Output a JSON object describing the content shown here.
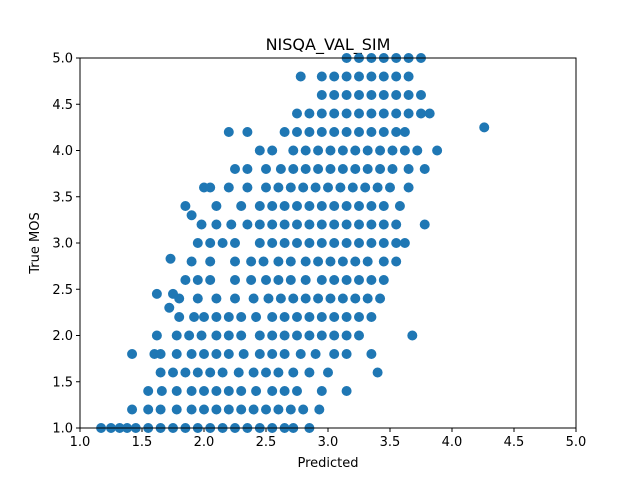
{
  "chart_data": {
    "type": "scatter",
    "title": "NISQA_VAL_SIM",
    "xlabel": "Predicted",
    "ylabel": "True MOS",
    "xlim": [
      1.0,
      5.0
    ],
    "ylim": [
      1.0,
      5.0
    ],
    "xticks": [
      "1.0",
      "1.5",
      "2.0",
      "2.5",
      "3.0",
      "3.5",
      "4.0",
      "4.5",
      "5.0"
    ],
    "yticks": [
      "1.0",
      "1.5",
      "2.0",
      "2.5",
      "3.0",
      "3.5",
      "4.0",
      "4.5",
      "5.0"
    ],
    "grid": false,
    "marker_color": "#1f77b4",
    "series": [
      {
        "points": [
          [
            1.17,
            1.0
          ],
          [
            1.25,
            1.0
          ],
          [
            1.32,
            1.0
          ],
          [
            1.38,
            1.0
          ],
          [
            1.45,
            1.0
          ],
          [
            1.55,
            1.0
          ],
          [
            1.65,
            1.0
          ],
          [
            1.75,
            1.0
          ],
          [
            1.85,
            1.0
          ],
          [
            1.95,
            1.0
          ],
          [
            2.05,
            1.0
          ],
          [
            2.15,
            1.0
          ],
          [
            2.25,
            1.0
          ],
          [
            2.35,
            1.0
          ],
          [
            2.45,
            1.0
          ],
          [
            2.55,
            1.0
          ],
          [
            2.65,
            1.0
          ],
          [
            2.72,
            1.0
          ],
          [
            2.85,
            1.0
          ],
          [
            1.42,
            1.2
          ],
          [
            1.55,
            1.2
          ],
          [
            1.65,
            1.2
          ],
          [
            1.78,
            1.2
          ],
          [
            1.9,
            1.2
          ],
          [
            2.0,
            1.2
          ],
          [
            2.1,
            1.2
          ],
          [
            2.2,
            1.2
          ],
          [
            2.3,
            1.2
          ],
          [
            2.4,
            1.2
          ],
          [
            2.5,
            1.2
          ],
          [
            2.6,
            1.2
          ],
          [
            2.7,
            1.2
          ],
          [
            2.8,
            1.2
          ],
          [
            2.93,
            1.2
          ],
          [
            1.55,
            1.4
          ],
          [
            1.66,
            1.4
          ],
          [
            1.78,
            1.4
          ],
          [
            1.9,
            1.4
          ],
          [
            2.0,
            1.4
          ],
          [
            2.1,
            1.4
          ],
          [
            2.2,
            1.4
          ],
          [
            2.3,
            1.4
          ],
          [
            2.42,
            1.4
          ],
          [
            2.55,
            1.4
          ],
          [
            2.65,
            1.4
          ],
          [
            2.75,
            1.4
          ],
          [
            2.95,
            1.4
          ],
          [
            3.15,
            1.4
          ],
          [
            1.65,
            1.6
          ],
          [
            1.75,
            1.6
          ],
          [
            1.85,
            1.6
          ],
          [
            1.95,
            1.6
          ],
          [
            2.05,
            1.6
          ],
          [
            2.15,
            1.6
          ],
          [
            2.28,
            1.6
          ],
          [
            2.4,
            1.6
          ],
          [
            2.5,
            1.6
          ],
          [
            2.6,
            1.6
          ],
          [
            2.72,
            1.6
          ],
          [
            2.85,
            1.6
          ],
          [
            3.0,
            1.6
          ],
          [
            3.4,
            1.6
          ],
          [
            1.42,
            1.8
          ],
          [
            1.6,
            1.8
          ],
          [
            1.65,
            1.8
          ],
          [
            1.78,
            1.8
          ],
          [
            1.9,
            1.8
          ],
          [
            2.0,
            1.8
          ],
          [
            2.1,
            1.8
          ],
          [
            2.2,
            1.8
          ],
          [
            2.32,
            1.8
          ],
          [
            2.45,
            1.8
          ],
          [
            2.55,
            1.8
          ],
          [
            2.65,
            1.8
          ],
          [
            2.78,
            1.8
          ],
          [
            2.9,
            1.8
          ],
          [
            3.05,
            1.8
          ],
          [
            3.15,
            1.8
          ],
          [
            3.35,
            1.8
          ],
          [
            1.62,
            2.0
          ],
          [
            1.78,
            2.0
          ],
          [
            1.88,
            2.0
          ],
          [
            1.98,
            2.0
          ],
          [
            2.1,
            2.0
          ],
          [
            2.2,
            2.0
          ],
          [
            2.3,
            2.0
          ],
          [
            2.45,
            2.0
          ],
          [
            2.55,
            2.0
          ],
          [
            2.65,
            2.0
          ],
          [
            2.75,
            2.0
          ],
          [
            2.85,
            2.0
          ],
          [
            2.95,
            2.0
          ],
          [
            3.05,
            2.0
          ],
          [
            3.15,
            2.0
          ],
          [
            3.25,
            2.0
          ],
          [
            3.68,
            2.0
          ],
          [
            1.8,
            2.2
          ],
          [
            1.92,
            2.2
          ],
          [
            2.0,
            2.2
          ],
          [
            2.1,
            2.2
          ],
          [
            2.2,
            2.2
          ],
          [
            2.3,
            2.2
          ],
          [
            2.42,
            2.2
          ],
          [
            2.55,
            2.2
          ],
          [
            2.65,
            2.2
          ],
          [
            2.75,
            2.2
          ],
          [
            2.85,
            2.2
          ],
          [
            2.95,
            2.2
          ],
          [
            3.05,
            2.2
          ],
          [
            3.15,
            2.2
          ],
          [
            3.25,
            2.2
          ],
          [
            3.35,
            2.2
          ],
          [
            1.72,
            2.3
          ],
          [
            1.8,
            2.4
          ],
          [
            1.95,
            2.4
          ],
          [
            2.1,
            2.4
          ],
          [
            2.25,
            2.4
          ],
          [
            2.4,
            2.4
          ],
          [
            2.52,
            2.4
          ],
          [
            2.62,
            2.4
          ],
          [
            2.72,
            2.4
          ],
          [
            2.82,
            2.4
          ],
          [
            2.92,
            2.4
          ],
          [
            3.02,
            2.4
          ],
          [
            3.12,
            2.4
          ],
          [
            3.22,
            2.4
          ],
          [
            3.32,
            2.4
          ],
          [
            3.42,
            2.4
          ],
          [
            1.62,
            2.45
          ],
          [
            1.75,
            2.45
          ],
          [
            1.85,
            2.6
          ],
          [
            1.95,
            2.6
          ],
          [
            2.05,
            2.6
          ],
          [
            2.25,
            2.6
          ],
          [
            2.38,
            2.6
          ],
          [
            2.5,
            2.6
          ],
          [
            2.6,
            2.6
          ],
          [
            2.7,
            2.6
          ],
          [
            2.82,
            2.6
          ],
          [
            2.95,
            2.6
          ],
          [
            3.05,
            2.6
          ],
          [
            3.15,
            2.6
          ],
          [
            3.25,
            2.6
          ],
          [
            3.35,
            2.6
          ],
          [
            3.45,
            2.6
          ],
          [
            1.9,
            2.8
          ],
          [
            2.05,
            2.8
          ],
          [
            2.25,
            2.8
          ],
          [
            2.38,
            2.8
          ],
          [
            2.48,
            2.8
          ],
          [
            2.6,
            2.8
          ],
          [
            2.7,
            2.8
          ],
          [
            2.82,
            2.8
          ],
          [
            2.92,
            2.8
          ],
          [
            3.02,
            2.8
          ],
          [
            3.12,
            2.8
          ],
          [
            3.22,
            2.8
          ],
          [
            3.32,
            2.8
          ],
          [
            3.45,
            2.8
          ],
          [
            3.55,
            2.8
          ],
          [
            1.73,
            2.83
          ],
          [
            1.95,
            3.0
          ],
          [
            2.05,
            3.0
          ],
          [
            2.15,
            3.0
          ],
          [
            2.25,
            3.0
          ],
          [
            2.45,
            3.0
          ],
          [
            2.55,
            3.0
          ],
          [
            2.65,
            3.0
          ],
          [
            2.75,
            3.0
          ],
          [
            2.85,
            3.0
          ],
          [
            2.95,
            3.0
          ],
          [
            3.05,
            3.0
          ],
          [
            3.15,
            3.0
          ],
          [
            3.25,
            3.0
          ],
          [
            3.35,
            3.0
          ],
          [
            3.45,
            3.0
          ],
          [
            3.55,
            3.0
          ],
          [
            3.62,
            3.0
          ],
          [
            1.98,
            3.2
          ],
          [
            2.1,
            3.2
          ],
          [
            2.22,
            3.2
          ],
          [
            2.35,
            3.2
          ],
          [
            2.45,
            3.2
          ],
          [
            2.55,
            3.2
          ],
          [
            2.65,
            3.2
          ],
          [
            2.75,
            3.2
          ],
          [
            2.85,
            3.2
          ],
          [
            2.95,
            3.2
          ],
          [
            3.05,
            3.2
          ],
          [
            3.15,
            3.2
          ],
          [
            3.25,
            3.2
          ],
          [
            3.35,
            3.2
          ],
          [
            3.45,
            3.2
          ],
          [
            3.55,
            3.2
          ],
          [
            3.78,
            3.2
          ],
          [
            1.85,
            3.4
          ],
          [
            2.1,
            3.4
          ],
          [
            2.3,
            3.4
          ],
          [
            2.45,
            3.4
          ],
          [
            2.55,
            3.4
          ],
          [
            2.65,
            3.4
          ],
          [
            2.75,
            3.4
          ],
          [
            2.85,
            3.4
          ],
          [
            2.95,
            3.4
          ],
          [
            3.05,
            3.4
          ],
          [
            3.15,
            3.4
          ],
          [
            3.25,
            3.4
          ],
          [
            3.35,
            3.4
          ],
          [
            3.45,
            3.4
          ],
          [
            3.58,
            3.4
          ],
          [
            1.9,
            3.3
          ],
          [
            2.0,
            3.6
          ],
          [
            2.05,
            3.6
          ],
          [
            2.2,
            3.6
          ],
          [
            2.35,
            3.6
          ],
          [
            2.5,
            3.6
          ],
          [
            2.6,
            3.6
          ],
          [
            2.7,
            3.6
          ],
          [
            2.8,
            3.6
          ],
          [
            2.9,
            3.6
          ],
          [
            3.0,
            3.6
          ],
          [
            3.1,
            3.6
          ],
          [
            3.2,
            3.6
          ],
          [
            3.3,
            3.6
          ],
          [
            3.4,
            3.6
          ],
          [
            3.5,
            3.6
          ],
          [
            3.65,
            3.6
          ],
          [
            2.25,
            3.8
          ],
          [
            2.35,
            3.8
          ],
          [
            2.5,
            3.8
          ],
          [
            2.62,
            3.8
          ],
          [
            2.72,
            3.8
          ],
          [
            2.82,
            3.8
          ],
          [
            2.92,
            3.8
          ],
          [
            3.02,
            3.8
          ],
          [
            3.12,
            3.8
          ],
          [
            3.22,
            3.8
          ],
          [
            3.32,
            3.8
          ],
          [
            3.42,
            3.8
          ],
          [
            3.52,
            3.8
          ],
          [
            3.65,
            3.8
          ],
          [
            3.78,
            3.8
          ],
          [
            2.45,
            4.0
          ],
          [
            2.55,
            4.0
          ],
          [
            2.72,
            4.0
          ],
          [
            2.82,
            4.0
          ],
          [
            2.92,
            4.0
          ],
          [
            3.02,
            4.0
          ],
          [
            3.12,
            4.0
          ],
          [
            3.22,
            4.0
          ],
          [
            3.32,
            4.0
          ],
          [
            3.42,
            4.0
          ],
          [
            3.52,
            4.0
          ],
          [
            3.62,
            4.0
          ],
          [
            3.72,
            4.0
          ],
          [
            3.88,
            4.0
          ],
          [
            2.2,
            4.2
          ],
          [
            2.35,
            4.2
          ],
          [
            2.65,
            4.2
          ],
          [
            2.75,
            4.2
          ],
          [
            2.85,
            4.2
          ],
          [
            2.95,
            4.2
          ],
          [
            3.05,
            4.2
          ],
          [
            3.15,
            4.2
          ],
          [
            3.25,
            4.2
          ],
          [
            3.35,
            4.2
          ],
          [
            3.45,
            4.2
          ],
          [
            3.55,
            4.2
          ],
          [
            3.62,
            4.2
          ],
          [
            4.26,
            4.25
          ],
          [
            2.75,
            4.4
          ],
          [
            2.85,
            4.4
          ],
          [
            2.95,
            4.4
          ],
          [
            3.05,
            4.4
          ],
          [
            3.15,
            4.4
          ],
          [
            3.25,
            4.4
          ],
          [
            3.35,
            4.4
          ],
          [
            3.45,
            4.4
          ],
          [
            3.55,
            4.4
          ],
          [
            3.65,
            4.4
          ],
          [
            3.75,
            4.4
          ],
          [
            3.82,
            4.4
          ],
          [
            2.95,
            4.6
          ],
          [
            3.05,
            4.6
          ],
          [
            3.15,
            4.6
          ],
          [
            3.25,
            4.6
          ],
          [
            3.35,
            4.6
          ],
          [
            3.45,
            4.6
          ],
          [
            3.55,
            4.6
          ],
          [
            3.65,
            4.6
          ],
          [
            3.75,
            4.6
          ],
          [
            2.78,
            4.8
          ],
          [
            2.95,
            4.8
          ],
          [
            3.05,
            4.8
          ],
          [
            3.15,
            4.8
          ],
          [
            3.25,
            4.8
          ],
          [
            3.35,
            4.8
          ],
          [
            3.45,
            4.8
          ],
          [
            3.55,
            4.8
          ],
          [
            3.65,
            4.8
          ],
          [
            3.15,
            5.0
          ],
          [
            3.25,
            5.0
          ],
          [
            3.35,
            5.0
          ],
          [
            3.45,
            5.0
          ],
          [
            3.55,
            5.0
          ],
          [
            3.65,
            5.0
          ],
          [
            3.75,
            5.0
          ]
        ]
      }
    ]
  }
}
